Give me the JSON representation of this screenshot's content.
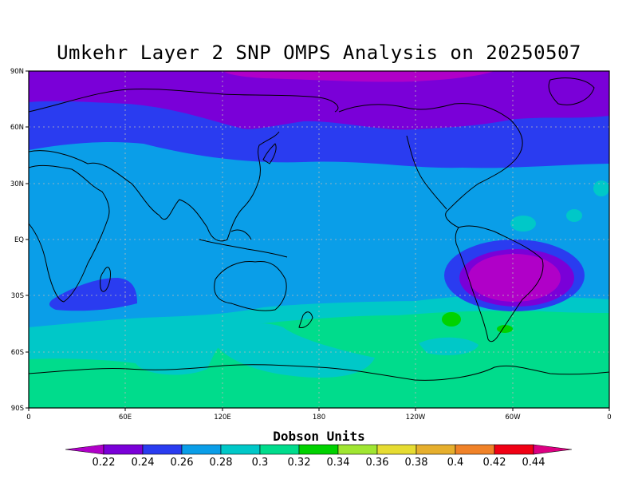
{
  "title": "Umkehr Layer 2 SNP OMPS Analysis on 20250507",
  "axes": {
    "y_labels": [
      "90N",
      "60N",
      "30N",
      "EQ",
      "30S",
      "60S",
      "90S"
    ],
    "x_labels": [
      "0",
      "60E",
      "120E",
      "180",
      "120W",
      "60W",
      "0"
    ]
  },
  "colorbar": {
    "title": "Dobson Units",
    "levels": [
      "0.22",
      "0.24",
      "0.26",
      "0.28",
      "0.3",
      "0.32",
      "0.34",
      "0.36",
      "0.38",
      "0.4",
      "0.42",
      "0.44"
    ],
    "colors": [
      "#b000c8",
      "#7a00d8",
      "#2a3cf0",
      "#0a9ee8",
      "#00c8c8",
      "#00dc8c",
      "#00d200",
      "#a0e632",
      "#e6dc32",
      "#e6af2d",
      "#f08228",
      "#f00014",
      "#dc0082"
    ]
  }
}
